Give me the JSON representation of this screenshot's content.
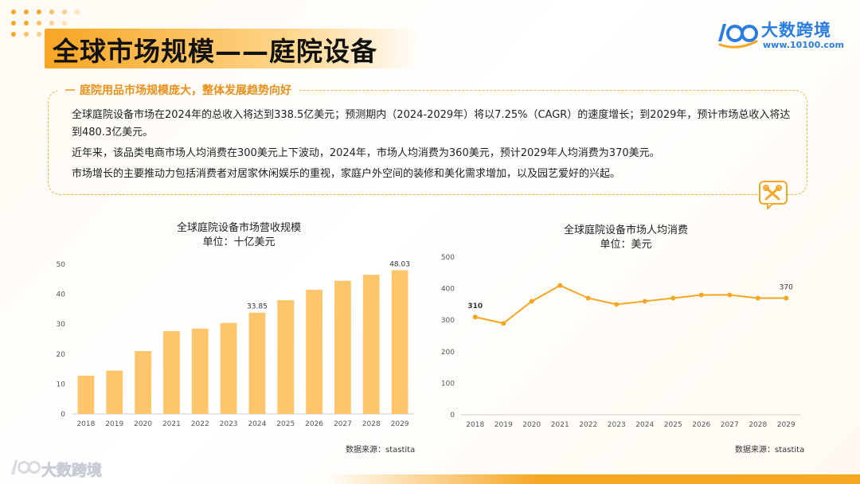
{
  "header": {
    "title": "全球市场规模——庭院设备",
    "brand_name": "大数跨境",
    "brand_url": "www.10100.com"
  },
  "summary": {
    "heading": "庭院用品市场规模庞大，整体发展趋势向好",
    "paragraphs": [
      "全球庭院设备市场在2024年的总收入将达到338.5亿美元；预测期内（2024-2029年）将以7.25%（CAGR）的速度增长；到2029年，预计市场总收入将达到480.3亿美元。",
      "近年来，该品类电商市场人均消费在300美元上下波动，2024年，市场人均消费为360美元，预计2029年人均消费为370美元。",
      "市场增长的主要推动力包括消费者对居家休闲娱乐的重视，家庭户外空间的装修和美化需求增加，以及园艺爱好的兴起。"
    ],
    "icon": "tools-icon"
  },
  "footer": {
    "brand_name": "大数跨境"
  },
  "chart_data": [
    {
      "type": "bar",
      "title": "全球庭院设备市场营收规模",
      "subtitle": "单位：十亿美元",
      "categories": [
        "2018",
        "2019",
        "2020",
        "2021",
        "2022",
        "2023",
        "2024",
        "2025",
        "2026",
        "2027",
        "2028",
        "2029"
      ],
      "values": [
        12.8,
        14.5,
        21.0,
        27.7,
        28.5,
        30.4,
        33.85,
        38.0,
        41.5,
        44.5,
        46.5,
        48.03
      ],
      "data_labels": {
        "6": "33.85",
        "11": "48.03"
      },
      "ylim": [
        0,
        50
      ],
      "yticks": [
        0,
        10,
        20,
        30,
        40,
        50
      ],
      "grid": false,
      "color": "#ffc56b",
      "source": "数据来源：stastita"
    },
    {
      "type": "line",
      "title": "全球庭院设备市场人均消费",
      "subtitle": "单位：美元",
      "categories": [
        "2018",
        "2019",
        "2020",
        "2021",
        "2022",
        "2023",
        "2024",
        "2025",
        "2026",
        "2027",
        "2028",
        "2029"
      ],
      "values": [
        310,
        290,
        360,
        410,
        370,
        350,
        360,
        370,
        380,
        380,
        370,
        370
      ],
      "data_labels": {
        "0": "310",
        "11": "370"
      },
      "ylim": [
        0,
        500
      ],
      "yticks": [
        0,
        100,
        200,
        300,
        400,
        500
      ],
      "grid": false,
      "color": "#f6a623",
      "source": "数据来源：stastita"
    }
  ]
}
